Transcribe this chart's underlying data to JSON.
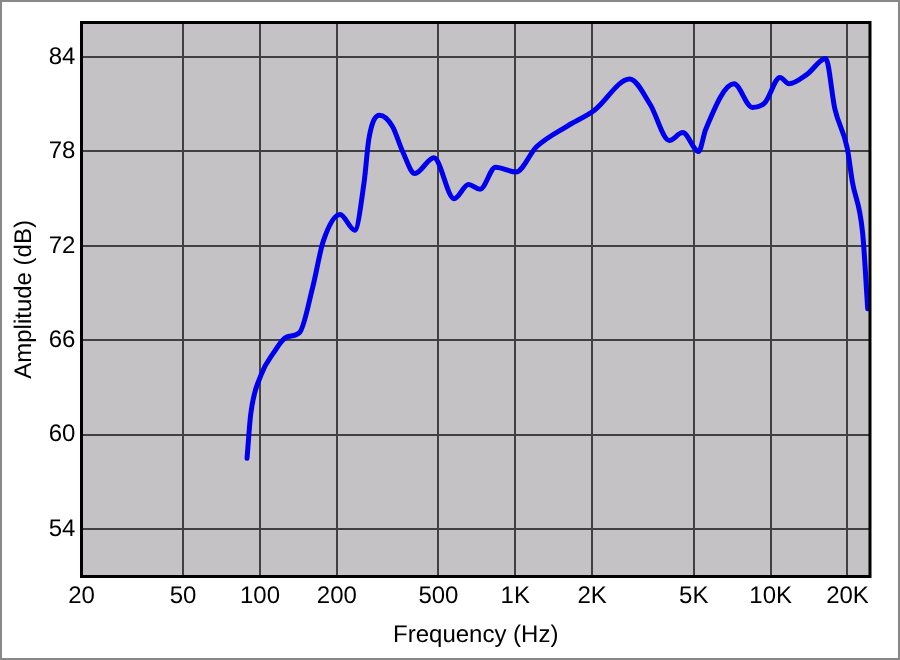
{
  "chart_data": {
    "type": "line",
    "xlabel": "Frequency (Hz)",
    "ylabel": "Amplitude (dB)",
    "log": "x",
    "grid": true,
    "legend": false,
    "marker": "none",
    "line_style": "solid",
    "xlim": [
      20,
      24500
    ],
    "xticks": [
      20,
      50,
      100,
      200,
      500,
      {
        "value": 1000,
        "label": "1K"
      },
      {
        "value": 2000,
        "label": "2K"
      },
      {
        "value": 5000,
        "label": "5K"
      },
      {
        "value": 10000,
        "label": "10K"
      },
      {
        "value": 20000,
        "label": "20K"
      }
    ],
    "ylim": [
      51,
      86.2
    ],
    "yticks": [
      54,
      60,
      66,
      72,
      78,
      84
    ],
    "series": [
      {
        "color": "#0000ee",
        "x": [
          89,
          92,
          101,
          113,
          127,
          143,
          161,
          177,
          206,
          235,
          256,
          267,
          294,
          330,
          362,
          404,
          480,
          576,
          656,
          728,
          837,
          1006,
          1211,
          1593,
          2036,
          2806,
          3371,
          4009,
          4526,
          5225,
          5567,
          7184,
          8475,
          9490,
          10880,
          11810,
          13880,
          16440,
          17850,
          19960,
          20880,
          22930,
          24000
        ],
        "values": [
          58.5,
          61.3,
          63.8,
          65.2,
          66.2,
          66.5,
          69.4,
          72.3,
          74,
          73,
          76.1,
          78.8,
          80.3,
          79.6,
          78,
          76.6,
          77.6,
          75,
          75.9,
          75.6,
          77,
          76.7,
          78.3,
          79.6,
          80.6,
          82.6,
          81,
          78.7,
          79.2,
          78,
          79.4,
          82.3,
          80.8,
          81.1,
          82.7,
          82.3,
          82.9,
          83.9,
          80.7,
          78.2,
          76.1,
          72.8,
          68
        ]
      }
    ]
  }
}
